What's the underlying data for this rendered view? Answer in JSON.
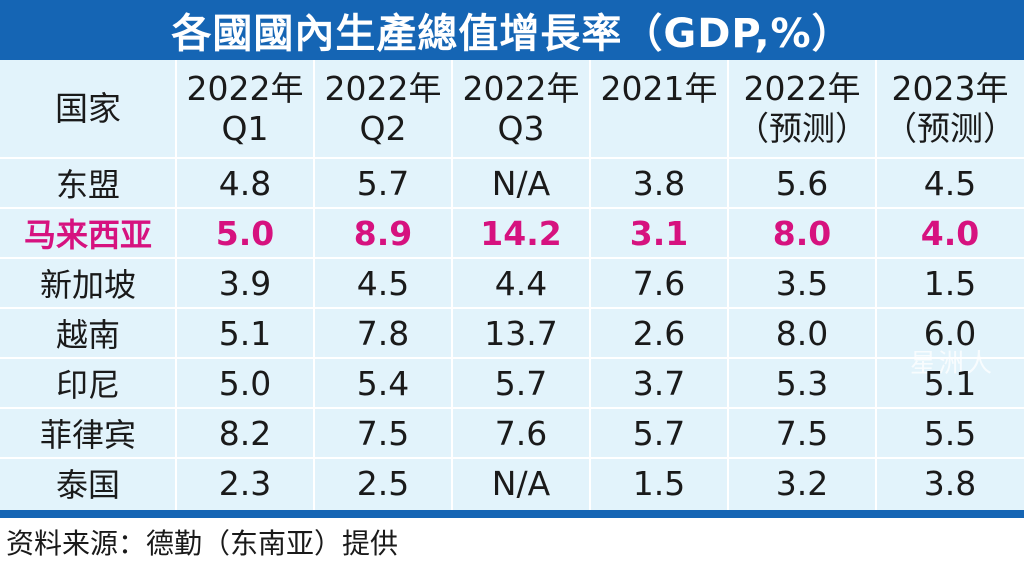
{
  "chart_data": {
    "type": "table",
    "title": "各國國內生產總值增長率（GDP,%）",
    "corner_label": "国家",
    "columns": [
      {
        "line1": "2022年",
        "line2": "Q1"
      },
      {
        "line1": "2022年",
        "line2": "Q2"
      },
      {
        "line1": "2022年",
        "line2": "Q3"
      },
      {
        "line1": "2021年",
        "line2": ""
      },
      {
        "line1": "2022年",
        "line2": "（预测）"
      },
      {
        "line1": "2023年",
        "line2": "（预测）"
      }
    ],
    "rows": [
      {
        "country": "东盟",
        "values": [
          "4.8",
          "5.7",
          "N/A",
          "3.8",
          "5.6",
          "4.5"
        ]
      },
      {
        "country": "马来西亚",
        "values": [
          "5.0",
          "8.9",
          "14.2",
          "3.1",
          "8.0",
          "4.0"
        ],
        "highlight": true
      },
      {
        "country": "新加坡",
        "values": [
          "3.9",
          "4.5",
          "4.4",
          "7.6",
          "3.5",
          "1.5"
        ]
      },
      {
        "country": "越南",
        "values": [
          "5.1",
          "7.8",
          "13.7",
          "2.6",
          "8.0",
          "6.0"
        ]
      },
      {
        "country": "印尼",
        "values": [
          "5.0",
          "5.4",
          "5.7",
          "3.7",
          "5.3",
          "5.1"
        ]
      },
      {
        "country": "菲律宾",
        "values": [
          "8.2",
          "7.5",
          "7.6",
          "5.7",
          "7.5",
          "5.5"
        ]
      },
      {
        "country": "泰国",
        "values": [
          "2.3",
          "2.5",
          "N/A",
          "1.5",
          "3.2",
          "3.8"
        ]
      }
    ],
    "source": "资料来源：德勤（东南亚）提供",
    "watermark": "星洲人"
  },
  "colors": {
    "title_bg": "#1565b4",
    "title_text": "#ffffff",
    "cell_bg": "#e2f3fb",
    "grid": "#ffffff",
    "highlight": "#d6127f",
    "text": "#1a1a1a"
  }
}
